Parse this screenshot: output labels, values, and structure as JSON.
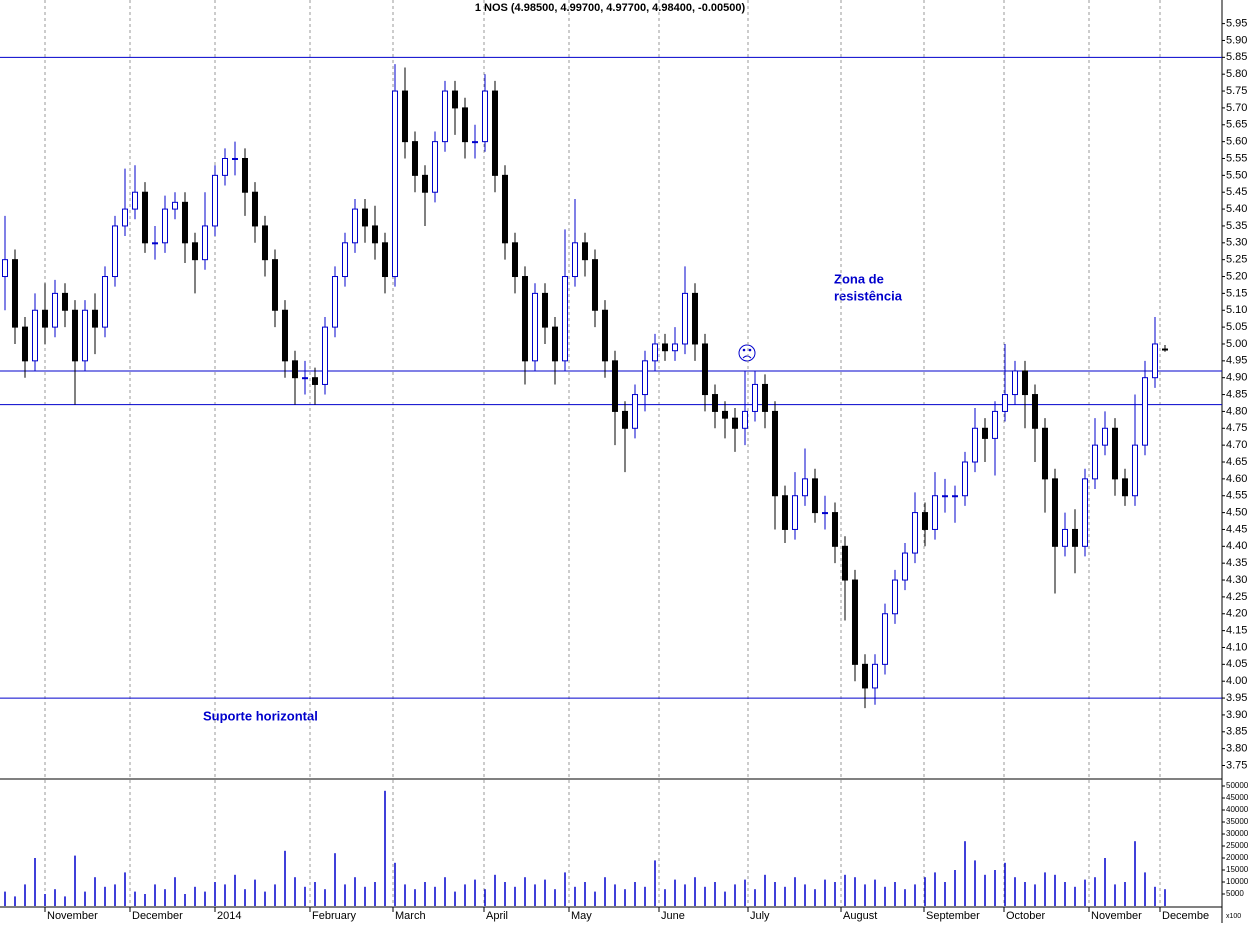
{
  "chart_data": {
    "type": "candlestick",
    "title": "1 NOS (4.98500, 4.99700, 4.97700, 4.98400, -0.00500)",
    "annotations": [
      "Zona de",
      "resistência",
      "Suporte horizontal"
    ],
    "xlim": [
      -0.5,
      121.7
    ],
    "xticks": [
      {
        "value": 4,
        "label": "November"
      },
      {
        "value": 12.5,
        "label": "December"
      },
      {
        "value": 21,
        "label": "2014"
      },
      {
        "value": 30.5,
        "label": "February"
      },
      {
        "value": 38.8,
        "label": "March"
      },
      {
        "value": 47.9,
        "label": "April"
      },
      {
        "value": 56.4,
        "label": "May"
      },
      {
        "value": 65.4,
        "label": "June"
      },
      {
        "value": 74.3,
        "label": "July"
      },
      {
        "value": 83.6,
        "label": "August"
      },
      {
        "value": 91.9,
        "label": "September"
      },
      {
        "value": 99.9,
        "label": "October"
      },
      {
        "value": 108.4,
        "label": "November"
      },
      {
        "value": 115.5,
        "label": "Decembe"
      }
    ],
    "ylim": [
      3.71,
      6.02
    ],
    "yticks": [
      3.75,
      {
        "value": 3.8,
        "label": "3.80"
      },
      3.85,
      {
        "value": 3.9,
        "label": "3.90"
      },
      3.95,
      {
        "value": 4,
        "label": "4.00"
      },
      4.05,
      {
        "value": 4.1,
        "label": "4.10"
      },
      4.15,
      {
        "value": 4.2,
        "label": "4.20"
      },
      4.25,
      {
        "value": 4.3,
        "label": "4.30"
      },
      4.35,
      {
        "value": 4.4,
        "label": "4.40"
      },
      4.45,
      {
        "value": 4.5,
        "label": "4.50"
      },
      4.55,
      {
        "value": 4.6,
        "label": "4.60"
      },
      4.65,
      {
        "value": 4.7,
        "label": "4.70"
      },
      4.75,
      {
        "value": 4.8,
        "label": "4.80"
      },
      4.85,
      {
        "value": 4.9,
        "label": "4.90"
      },
      4.95,
      {
        "value": 5,
        "label": "5.00"
      },
      5.05,
      {
        "value": 5.1,
        "label": "5.10"
      },
      5.15,
      {
        "value": 5.2,
        "label": "5.20"
      },
      5.25,
      {
        "value": 5.3,
        "label": "5.30"
      },
      5.35,
      {
        "value": 5.4,
        "label": "5.40"
      },
      5.45,
      {
        "value": 5.5,
        "label": "5.50"
      },
      5.55,
      {
        "value": 5.6,
        "label": "5.60"
      },
      5.65,
      {
        "value": 5.7,
        "label": "5.70"
      },
      5.75,
      {
        "value": 5.8,
        "label": "5.80"
      },
      5.85,
      {
        "value": 5.9,
        "label": "5.90"
      },
      5.95
    ],
    "hlines": [
      5.85,
      4.92,
      4.82,
      3.95
    ],
    "up_color": "#0000cc",
    "down_color": "#000000",
    "line_color": "#0000cc",
    "candles": [
      [
        5.2,
        5.38,
        5.1,
        5.25
      ],
      [
        5.25,
        5.28,
        5.0,
        5.05
      ],
      [
        5.05,
        5.08,
        4.9,
        4.95
      ],
      [
        4.95,
        5.15,
        4.92,
        5.1
      ],
      [
        5.1,
        5.18,
        5.0,
        5.05
      ],
      [
        5.05,
        5.19,
        5.02,
        5.15
      ],
      [
        5.15,
        5.18,
        5.05,
        5.1
      ],
      [
        5.1,
        5.13,
        4.82,
        4.95
      ],
      [
        4.95,
        5.13,
        4.92,
        5.1
      ],
      [
        5.1,
        5.15,
        4.97,
        5.05
      ],
      [
        5.05,
        5.23,
        5.02,
        5.2
      ],
      [
        5.2,
        5.38,
        5.17,
        5.35
      ],
      [
        5.35,
        5.52,
        5.32,
        5.4
      ],
      [
        5.4,
        5.53,
        5.37,
        5.45
      ],
      [
        5.45,
        5.48,
        5.27,
        5.3
      ],
      [
        5.3,
        5.35,
        5.25,
        5.3
      ],
      [
        5.3,
        5.44,
        5.27,
        5.4
      ],
      [
        5.4,
        5.45,
        5.37,
        5.42
      ],
      [
        5.42,
        5.45,
        5.24,
        5.3
      ],
      [
        5.3,
        5.33,
        5.15,
        5.25
      ],
      [
        5.25,
        5.45,
        5.22,
        5.35
      ],
      [
        5.35,
        5.53,
        5.32,
        5.5
      ],
      [
        5.5,
        5.58,
        5.47,
        5.55
      ],
      [
        5.55,
        5.6,
        5.5,
        5.55
      ],
      [
        5.55,
        5.58,
        5.38,
        5.45
      ],
      [
        5.45,
        5.48,
        5.3,
        5.35
      ],
      [
        5.35,
        5.38,
        5.2,
        5.25
      ],
      [
        5.25,
        5.28,
        5.05,
        5.1
      ],
      [
        5.1,
        5.13,
        4.9,
        4.95
      ],
      [
        4.95,
        4.98,
        4.82,
        4.9
      ],
      [
        4.9,
        4.95,
        4.85,
        4.9
      ],
      [
        4.9,
        4.93,
        4.82,
        4.88
      ],
      [
        4.88,
        5.08,
        4.85,
        5.05
      ],
      [
        5.05,
        5.23,
        5.02,
        5.2
      ],
      [
        5.2,
        5.33,
        5.17,
        5.3
      ],
      [
        5.3,
        5.43,
        5.27,
        5.4
      ],
      [
        5.4,
        5.43,
        5.3,
        5.35
      ],
      [
        5.35,
        5.41,
        5.25,
        5.3
      ],
      [
        5.3,
        5.33,
        5.15,
        5.2
      ],
      [
        5.2,
        5.83,
        5.17,
        5.75
      ],
      [
        5.75,
        5.82,
        5.55,
        5.6
      ],
      [
        5.6,
        5.63,
        5.45,
        5.5
      ],
      [
        5.5,
        5.53,
        5.35,
        5.45
      ],
      [
        5.45,
        5.63,
        5.42,
        5.6
      ],
      [
        5.6,
        5.78,
        5.57,
        5.75
      ],
      [
        5.75,
        5.78,
        5.62,
        5.7
      ],
      [
        5.7,
        5.73,
        5.55,
        5.6
      ],
      [
        5.6,
        5.65,
        5.55,
        5.6
      ],
      [
        5.6,
        5.8,
        5.57,
        5.75
      ],
      [
        5.75,
        5.78,
        5.45,
        5.5
      ],
      [
        5.5,
        5.53,
        5.25,
        5.3
      ],
      [
        5.3,
        5.33,
        5.15,
        5.2
      ],
      [
        5.2,
        5.23,
        4.88,
        4.95
      ],
      [
        4.95,
        5.18,
        4.92,
        5.15
      ],
      [
        5.15,
        5.18,
        5.0,
        5.05
      ],
      [
        5.05,
        5.08,
        4.88,
        4.95
      ],
      [
        4.95,
        5.34,
        4.92,
        5.2
      ],
      [
        5.2,
        5.43,
        5.17,
        5.3
      ],
      [
        5.3,
        5.33,
        5.2,
        5.25
      ],
      [
        5.25,
        5.28,
        5.05,
        5.1
      ],
      [
        5.1,
        5.13,
        4.9,
        4.95
      ],
      [
        4.95,
        4.98,
        4.7,
        4.8
      ],
      [
        4.8,
        4.83,
        4.62,
        4.75
      ],
      [
        4.75,
        4.88,
        4.72,
        4.85
      ],
      [
        4.85,
        4.98,
        4.8,
        4.95
      ],
      [
        4.95,
        5.03,
        4.92,
        5.0
      ],
      [
        5.0,
        5.03,
        4.95,
        4.98
      ],
      [
        4.98,
        5.05,
        4.95,
        5.0
      ],
      [
        5.0,
        5.23,
        4.97,
        5.15
      ],
      [
        5.15,
        5.18,
        4.95,
        5.0
      ],
      [
        5.0,
        5.03,
        4.8,
        4.85
      ],
      [
        4.85,
        4.88,
        4.75,
        4.8
      ],
      [
        4.8,
        4.83,
        4.72,
        4.78
      ],
      [
        4.78,
        4.81,
        4.68,
        4.75
      ],
      [
        4.75,
        4.92,
        4.7,
        4.8
      ],
      [
        4.8,
        4.92,
        4.77,
        4.88
      ],
      [
        4.88,
        4.91,
        4.75,
        4.8
      ],
      [
        4.8,
        4.83,
        4.45,
        4.55
      ],
      [
        4.55,
        4.58,
        4.41,
        4.45
      ],
      [
        4.45,
        4.62,
        4.42,
        4.55
      ],
      [
        4.55,
        4.69,
        4.52,
        4.6
      ],
      [
        4.6,
        4.63,
        4.47,
        4.5
      ],
      [
        4.5,
        4.55,
        4.45,
        4.5
      ],
      [
        4.5,
        4.53,
        4.35,
        4.4
      ],
      [
        4.4,
        4.43,
        4.18,
        4.3
      ],
      [
        4.3,
        4.33,
        4.0,
        4.05
      ],
      [
        4.05,
        4.08,
        3.92,
        3.98
      ],
      [
        3.98,
        4.08,
        3.93,
        4.05
      ],
      [
        4.05,
        4.23,
        4.02,
        4.2
      ],
      [
        4.2,
        4.33,
        4.17,
        4.3
      ],
      [
        4.3,
        4.41,
        4.27,
        4.38
      ],
      [
        4.38,
        4.56,
        4.35,
        4.5
      ],
      [
        4.5,
        4.53,
        4.4,
        4.45
      ],
      [
        4.45,
        4.62,
        4.42,
        4.55
      ],
      [
        4.55,
        4.6,
        4.5,
        4.55
      ],
      [
        4.55,
        4.58,
        4.47,
        4.55
      ],
      [
        4.55,
        4.68,
        4.52,
        4.65
      ],
      [
        4.65,
        4.81,
        4.62,
        4.75
      ],
      [
        4.75,
        4.78,
        4.65,
        4.72
      ],
      [
        4.72,
        4.83,
        4.61,
        4.8
      ],
      [
        4.8,
        5.0,
        4.77,
        4.85
      ],
      [
        4.85,
        4.95,
        4.82,
        4.92
      ],
      [
        4.92,
        4.95,
        4.75,
        4.85
      ],
      [
        4.85,
        4.88,
        4.65,
        4.75
      ],
      [
        4.75,
        4.78,
        4.5,
        4.6
      ],
      [
        4.6,
        4.63,
        4.26,
        4.4
      ],
      [
        4.4,
        4.5,
        4.37,
        4.45
      ],
      [
        4.45,
        4.51,
        4.32,
        4.4
      ],
      [
        4.4,
        4.63,
        4.37,
        4.6
      ],
      [
        4.6,
        4.78,
        4.57,
        4.7
      ],
      [
        4.7,
        4.8,
        4.67,
        4.75
      ],
      [
        4.75,
        4.78,
        4.55,
        4.6
      ],
      [
        4.6,
        4.63,
        4.52,
        4.55
      ],
      [
        4.55,
        4.85,
        4.52,
        4.7
      ],
      [
        4.7,
        4.95,
        4.67,
        4.9
      ],
      [
        4.9,
        5.08,
        4.87,
        5.0
      ],
      [
        4.985,
        4.997,
        4.977,
        4.984
      ]
    ],
    "volume_unit_label": "x100",
    "y2lim": [
      0,
      52500
    ],
    "y2ticks": [
      5000,
      10000,
      15000,
      20000,
      25000,
      30000,
      35000,
      40000,
      45000,
      50000
    ],
    "volumes": [
      6000,
      4000,
      9000,
      20000,
      5000,
      7000,
      4000,
      21000,
      6000,
      12000,
      8000,
      9000,
      14000,
      6000,
      5000,
      9000,
      7000,
      12000,
      5000,
      8000,
      6000,
      10000,
      9000,
      13000,
      7000,
      11000,
      6000,
      9000,
      23000,
      12000,
      8000,
      10000,
      7000,
      22000,
      9000,
      12000,
      8000,
      10000,
      48000,
      18000,
      9000,
      7000,
      10000,
      8000,
      12000,
      6000,
      9000,
      11000,
      7000,
      13000,
      10000,
      8000,
      12000,
      9000,
      11000,
      7000,
      14000,
      8000,
      10000,
      6000,
      12000,
      9000,
      7000,
      10000,
      8000,
      19000,
      7000,
      11000,
      9000,
      12000,
      8000,
      10000,
      6000,
      9000,
      11000,
      7000,
      13000,
      10000,
      8000,
      12000,
      9000,
      7000,
      11000,
      10000,
      13000,
      12000,
      9000,
      11000,
      8000,
      10000,
      7000,
      9000,
      12000,
      14000,
      10000,
      15000,
      27000,
      19000,
      13000,
      15000,
      18000,
      12000,
      10000,
      9000,
      14000,
      13000,
      10000,
      8000,
      11000,
      12000,
      20000,
      9000,
      10000,
      27000,
      14000,
      8000,
      7000
    ]
  }
}
